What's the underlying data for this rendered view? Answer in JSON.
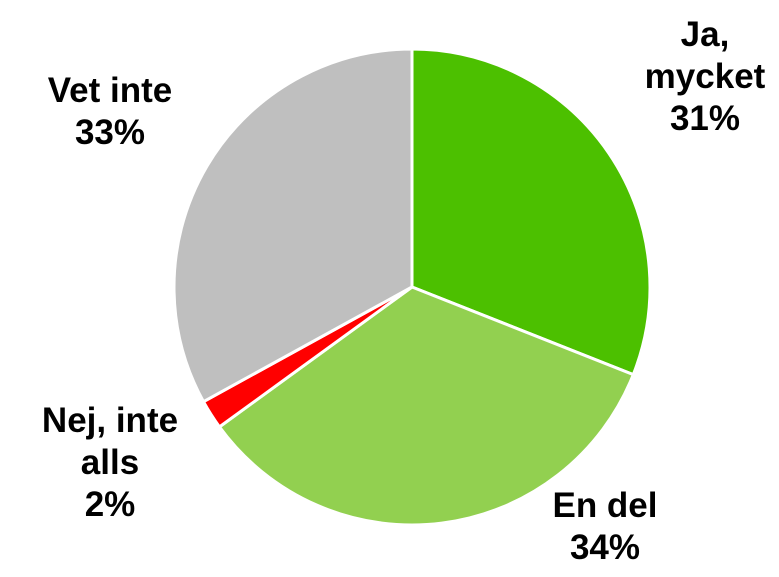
{
  "chart_data": {
    "type": "pie",
    "categories": [
      "Ja, mycket",
      "En del",
      "Nej, inte alls",
      "Vet inte"
    ],
    "values": [
      31,
      34,
      2,
      33
    ],
    "value_labels": [
      "31%",
      "34%",
      "2%",
      "33%"
    ],
    "colors": [
      "#4cc000",
      "#92d050",
      "#ff0000",
      "#bfbfbf"
    ]
  }
}
